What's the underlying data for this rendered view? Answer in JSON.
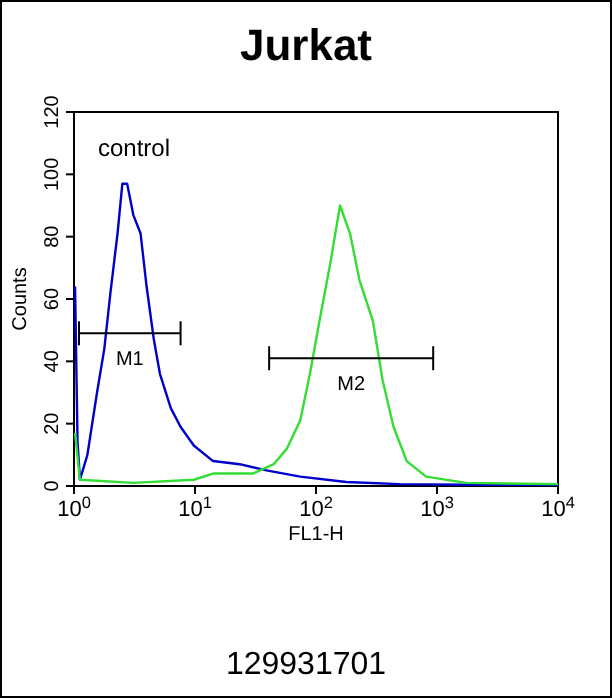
{
  "chart_data": {
    "type": "line",
    "title": "Jurkat",
    "xlabel": "FL1-H",
    "ylabel": "Counts",
    "log": "x",
    "marker": "none",
    "line_style": "solid",
    "grid": false,
    "xlim": [
      1,
      10000
    ],
    "xticks": [
      {
        "value": 1,
        "label": "10$^{0}$"
      },
      {
        "value": 10,
        "label": "10$^{1}$"
      },
      {
        "value": 100,
        "label": "10$^{2}$"
      },
      {
        "value": 1000,
        "label": "10$^{3}$"
      },
      {
        "value": 10000,
        "label": "10$^{4}$"
      }
    ],
    "ylim": [
      0,
      120
    ],
    "yticks": [
      0,
      20,
      40,
      60,
      80,
      100,
      120
    ],
    "series": [
      {
        "color": "#0000cc",
        "x": [
          1.02,
          1.07,
          1.12,
          1.29,
          1.55,
          1.78,
          2.0,
          2.29,
          2.51,
          2.75,
          3.09,
          3.55,
          3.98,
          4.57,
          5.13,
          6.31,
          7.59,
          9.77,
          14.1,
          23.4,
          38.9,
          74.1,
          178,
          490,
          1740,
          10000
        ],
        "values": [
          64,
          14,
          2,
          10,
          30,
          44,
          62,
          81,
          97,
          97,
          87,
          81,
          64,
          47,
          36,
          25,
          19,
          13,
          8,
          7,
          5,
          3,
          1.3,
          0.6,
          0.4,
          0.4
        ]
      },
      {
        "color": "#33dd33",
        "x": [
          1.02,
          1.12,
          3.09,
          9.77,
          14.1,
          30.2,
          44.7,
          57.5,
          74.1,
          89.1,
          107,
          132,
          158,
          191,
          229,
          295,
          355,
          437,
          562,
          813,
          1740,
          10000
        ],
        "values": [
          17,
          2,
          1,
          2,
          4,
          4,
          7,
          12,
          21,
          36,
          53,
          72,
          90,
          81,
          66,
          53,
          34,
          19,
          8,
          3,
          1,
          0.6
        ]
      },
      {
        "type": "line",
        "color": "#000000",
        "x": [
          1.1,
          7.6
        ],
        "values": [
          49,
          49
        ]
      },
      {
        "type": "line",
        "color": "#000000",
        "x": [
          41,
          930
        ],
        "values": [
          41,
          41
        ]
      }
    ],
    "annotations": [
      {
        "text": "control"
      },
      {
        "text": "129931701"
      },
      "M1",
      "M2"
    ]
  }
}
